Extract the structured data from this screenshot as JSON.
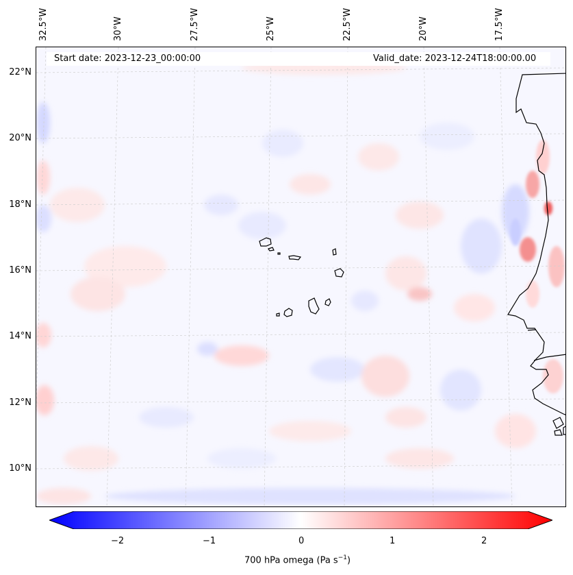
{
  "header": {
    "start_date": "Start date: 2023-12-23_00:00:00",
    "valid_date": "Valid_date: 2023-12-24T18:00:00.00"
  },
  "axes": {
    "longitude_labels": [
      "32.5°W",
      "30°W",
      "27.5°W",
      "25°W",
      "22.5°W",
      "20°W",
      "17.5°W"
    ],
    "latitude_labels": [
      "22°N",
      "20°N",
      "18°N",
      "16°N",
      "14°N",
      "12°N",
      "10°N"
    ]
  },
  "colorbar": {
    "ticks": [
      "−2",
      "−1",
      "0",
      "1",
      "2"
    ],
    "label": "700 hPa omega (Pa s",
    "label_exp": "−1",
    "label_end": ")",
    "min": -2.7,
    "max": 2.7,
    "colors": {
      "low": "#0000ff",
      "mid": "#ffffff",
      "high": "#ff0000"
    }
  },
  "map": {
    "ocean_color": "#f7f7ff",
    "coastline_color": "#000000"
  }
}
